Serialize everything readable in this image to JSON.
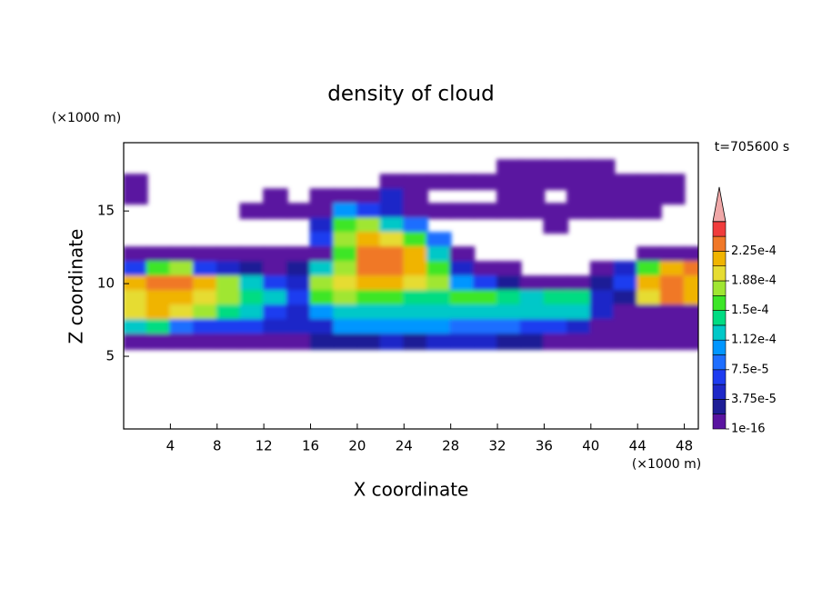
{
  "chart_data": {
    "type": "contour",
    "title": "density of cloud",
    "x_label": "X coordinate",
    "y_label": "Z coordinate",
    "x_unit_label": "(×1000 m)",
    "y_unit_label": "(×1000 m)",
    "annotation": "t=705600 s",
    "xlim": [
      0,
      49.2
    ],
    "ylim": [
      0,
      19.7
    ],
    "xticks": [
      4,
      8,
      12,
      16,
      20,
      24,
      28,
      32,
      36,
      40,
      44,
      48
    ],
    "yticks": [
      5,
      10,
      15
    ],
    "x": [
      1,
      3,
      5,
      7,
      9,
      11,
      13,
      15,
      17,
      19,
      21,
      23,
      25,
      27,
      29,
      31,
      33,
      35,
      37,
      39,
      41,
      43,
      45,
      47,
      49
    ],
    "y": [
      18,
      17,
      16,
      15,
      14,
      13,
      12,
      11,
      10,
      9,
      8,
      7,
      6
    ],
    "z": [
      [
        null,
        null,
        null,
        null,
        null,
        null,
        null,
        null,
        null,
        null,
        null,
        null,
        null,
        null,
        null,
        null,
        1e-16,
        1e-16,
        1e-16,
        1e-16,
        1e-16,
        null,
        null,
        null,
        null
      ],
      [
        1e-16,
        null,
        null,
        null,
        null,
        null,
        null,
        null,
        null,
        null,
        null,
        1e-16,
        1e-16,
        1e-16,
        1e-16,
        1e-16,
        1e-16,
        1e-16,
        1e-16,
        1e-16,
        1e-16,
        1e-16,
        1e-16,
        1e-16,
        null
      ],
      [
        1e-16,
        null,
        null,
        null,
        null,
        null,
        1e-16,
        null,
        1e-16,
        1e-16,
        1e-16,
        3.8e-05,
        1e-16,
        null,
        null,
        null,
        1e-16,
        1e-16,
        null,
        1e-16,
        1e-16,
        1e-16,
        1e-16,
        1e-16,
        null
      ],
      [
        null,
        null,
        null,
        null,
        null,
        1e-16,
        1e-16,
        1e-16,
        1e-16,
        9.4e-05,
        5.7e-05,
        3.8e-05,
        1e-16,
        1e-16,
        1e-16,
        1e-16,
        1e-16,
        1e-16,
        1e-16,
        1e-16,
        1e-16,
        1e-16,
        1e-16,
        null,
        null
      ],
      [
        null,
        null,
        null,
        null,
        null,
        null,
        null,
        null,
        3.8e-05,
        0.00015,
        0.00017,
        0.00012,
        7.5e-05,
        null,
        null,
        null,
        null,
        null,
        1e-16,
        null,
        null,
        null,
        null,
        null,
        null
      ],
      [
        null,
        null,
        null,
        null,
        null,
        null,
        null,
        null,
        5.7e-05,
        0.00017,
        0.00021,
        0.00019,
        0.00015,
        7.5e-05,
        null,
        null,
        null,
        null,
        null,
        null,
        null,
        null,
        null,
        null,
        null
      ],
      [
        1e-16,
        1e-16,
        1e-16,
        1e-16,
        1e-16,
        1e-16,
        1e-16,
        1e-16,
        1e-16,
        0.00015,
        0.00023,
        0.00023,
        0.00021,
        0.00012,
        1e-16,
        null,
        null,
        null,
        null,
        null,
        null,
        null,
        1e-16,
        1e-16,
        1e-16
      ],
      [
        5.7e-05,
        0.00015,
        0.00017,
        5.7e-05,
        3.8e-05,
        1.9e-05,
        1e-16,
        1.9e-05,
        0.00012,
        0.00017,
        0.00023,
        0.00023,
        0.00021,
        0.00015,
        3.8e-05,
        1e-16,
        1e-16,
        null,
        null,
        null,
        1e-16,
        3.8e-05,
        0.00015,
        0.00021,
        0.00023
      ],
      [
        0.00021,
        0.00023,
        0.00023,
        0.00021,
        0.00017,
        0.00012,
        5.7e-05,
        3.8e-05,
        0.00017,
        0.00019,
        0.00021,
        0.00021,
        0.00019,
        0.00017,
        9.4e-05,
        5.7e-05,
        1.9e-05,
        1e-16,
        1e-16,
        1e-16,
        1.9e-05,
        5.7e-05,
        0.00021,
        0.00023,
        0.00021
      ],
      [
        0.00019,
        0.00021,
        0.00021,
        0.00019,
        0.00017,
        0.00014,
        0.00012,
        5.7e-05,
        0.00015,
        0.00017,
        0.00015,
        0.00015,
        0.00014,
        0.00014,
        0.00015,
        0.00015,
        0.00014,
        0.00012,
        0.00014,
        0.00014,
        3.8e-05,
        1.9e-05,
        0.00019,
        0.00023,
        0.00021
      ],
      [
        0.00019,
        0.00021,
        0.00019,
        0.00017,
        0.00014,
        0.00012,
        5.7e-05,
        3.8e-05,
        9.4e-05,
        0.00012,
        0.00012,
        0.00012,
        0.00012,
        0.00012,
        0.00012,
        0.00012,
        0.00012,
        0.00012,
        0.00012,
        0.00012,
        3.8e-05,
        1e-16,
        1e-16,
        1e-16,
        1e-16
      ],
      [
        0.00012,
        0.00014,
        7.5e-05,
        5.7e-05,
        5.7e-05,
        5.7e-05,
        3.8e-05,
        3.8e-05,
        3.8e-05,
        9.4e-05,
        9.4e-05,
        9.4e-05,
        9.4e-05,
        9.4e-05,
        7.5e-05,
        7.5e-05,
        7.5e-05,
        5.7e-05,
        5.7e-05,
        3.8e-05,
        1e-16,
        1e-16,
        1e-16,
        1e-16,
        1e-16
      ],
      [
        1e-16,
        1e-16,
        1e-16,
        1e-16,
        1e-16,
        1e-16,
        1e-16,
        1e-16,
        1.9e-05,
        1.9e-05,
        1.9e-05,
        3.8e-05,
        1.9e-05,
        3.8e-05,
        3.8e-05,
        3.8e-05,
        1.9e-05,
        1.9e-05,
        1e-16,
        1e-16,
        1e-16,
        1e-16,
        1e-16,
        1e-16,
        1e-16
      ]
    ],
    "colorbar": {
      "levels": [
        1e-16,
        1.875e-05,
        3.75e-05,
        5.625e-05,
        7.5e-05,
        9.375e-05,
        0.0001125,
        0.00013125,
        0.00015,
        0.00016875,
        0.0001875,
        0.00020625,
        0.000225,
        0.00024375
      ],
      "colors": [
        "#5a14a0",
        "#1e1e96",
        "#1e28c8",
        "#1e3cf0",
        "#1e6eff",
        "#0096ff",
        "#00c8c8",
        "#00dc82",
        "#3ce628",
        "#a0e632",
        "#e6dc32",
        "#f0b400",
        "#f07828",
        "#f03c3c"
      ],
      "extend_color": "#f0a8a8",
      "ticks": [
        {
          "value": 1e-16,
          "label": "1e-16"
        },
        {
          "value": 3.75e-05,
          "label": "3.75e-5"
        },
        {
          "value": 7.5e-05,
          "label": "7.5e-5"
        },
        {
          "value": 0.0001125,
          "label": "1.12e-4"
        },
        {
          "value": 0.00015,
          "label": "1.5e-4"
        },
        {
          "value": 0.0001875,
          "label": "1.88e-4"
        },
        {
          "value": 0.000225,
          "label": "2.25e-4"
        }
      ]
    }
  }
}
